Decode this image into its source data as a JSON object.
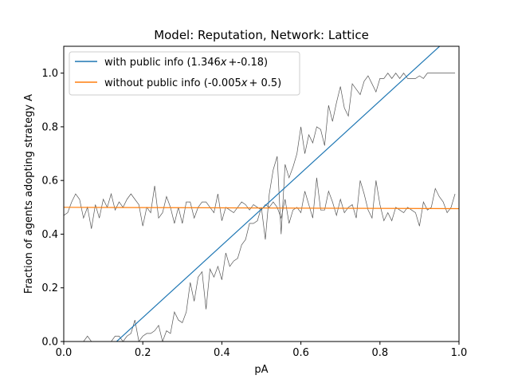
{
  "chart_data": {
    "type": "line",
    "title": "Model: Reputation, Network: Lattice",
    "xlabel": "pA",
    "ylabel": "Fraction of agents adopting strategy A",
    "xlim": [
      0.0,
      1.0
    ],
    "ylim": [
      0.0,
      1.1
    ],
    "xticks": [
      "0.0",
      "0.2",
      "0.4",
      "0.6",
      "0.8",
      "1.0"
    ],
    "yticks": [
      "0.0",
      "0.2",
      "0.4",
      "0.6",
      "0.8",
      "1.0"
    ],
    "grid": false,
    "legend_position": "top-left",
    "series": [
      {
        "name": "with public info (1.346$x+$-0.18)",
        "legend_prefix": "with public info (1.346",
        "legend_mid": "+",
        "legend_suffix": "-0.18)",
        "kind": "fit",
        "color": "#1f77b4",
        "slope": 1.346,
        "intercept": -0.18
      },
      {
        "name": "without public info (-0.005$x+0.5$)",
        "legend_prefix": "without public info (-0.005",
        "legend_mid": "+ 0.5",
        "legend_suffix": ")",
        "kind": "fit",
        "color": "#ff7f0e",
        "slope": -0.005,
        "intercept": 0.5
      },
      {
        "kind": "raw",
        "color": "#555555",
        "x": [
          0.0,
          0.01,
          0.02,
          0.03,
          0.04,
          0.05,
          0.06,
          0.07,
          0.08,
          0.09,
          0.1,
          0.11,
          0.12,
          0.13,
          0.14,
          0.15,
          0.16,
          0.17,
          0.18,
          0.19,
          0.2,
          0.21,
          0.22,
          0.23,
          0.24,
          0.25,
          0.26,
          0.27,
          0.28,
          0.29,
          0.3,
          0.31,
          0.32,
          0.33,
          0.34,
          0.35,
          0.36,
          0.37,
          0.38,
          0.39,
          0.4,
          0.41,
          0.42,
          0.43,
          0.44,
          0.45,
          0.46,
          0.47,
          0.48,
          0.49,
          0.5,
          0.51,
          0.52,
          0.53,
          0.54,
          0.55,
          0.56,
          0.57,
          0.58,
          0.59,
          0.6,
          0.61,
          0.62,
          0.63,
          0.64,
          0.65,
          0.66,
          0.67,
          0.68,
          0.69,
          0.7,
          0.71,
          0.72,
          0.73,
          0.74,
          0.75,
          0.76,
          0.77,
          0.78,
          0.79,
          0.8,
          0.81,
          0.82,
          0.83,
          0.84,
          0.85,
          0.86,
          0.87,
          0.88,
          0.89,
          0.9,
          0.91,
          0.92,
          0.93,
          0.94,
          0.95,
          0.96,
          0.97,
          0.98,
          0.99
        ],
        "y": [
          0.0,
          0.0,
          0.0,
          0.0,
          0.0,
          0.0,
          0.02,
          0.0,
          0.0,
          0.0,
          0.0,
          0.0,
          0.0,
          0.02,
          0.02,
          0.0,
          0.02,
          0.03,
          0.08,
          0.0,
          0.02,
          0.03,
          0.03,
          0.04,
          0.06,
          0.0,
          0.04,
          0.03,
          0.11,
          0.08,
          0.07,
          0.11,
          0.22,
          0.15,
          0.24,
          0.26,
          0.12,
          0.27,
          0.24,
          0.28,
          0.23,
          0.33,
          0.28,
          0.3,
          0.31,
          0.36,
          0.38,
          0.44,
          0.44,
          0.45,
          0.5,
          0.38,
          0.55,
          0.64,
          0.69,
          0.4,
          0.66,
          0.61,
          0.65,
          0.7,
          0.8,
          0.7,
          0.77,
          0.74,
          0.8,
          0.79,
          0.73,
          0.88,
          0.82,
          0.89,
          0.95,
          0.87,
          0.84,
          0.96,
          0.94,
          0.92,
          0.97,
          0.99,
          0.96,
          0.93,
          0.98,
          0.98,
          1.0,
          0.98,
          1.0,
          0.98,
          1.0,
          0.98,
          0.98,
          0.98,
          0.99,
          0.98,
          1.0,
          1.0,
          1.0,
          1.0,
          1.0,
          1.0,
          1.0,
          1.0
        ]
      },
      {
        "kind": "raw",
        "color": "#555555",
        "x": [
          0.0,
          0.01,
          0.02,
          0.03,
          0.04,
          0.05,
          0.06,
          0.07,
          0.08,
          0.09,
          0.1,
          0.11,
          0.12,
          0.13,
          0.14,
          0.15,
          0.16,
          0.17,
          0.18,
          0.19,
          0.2,
          0.21,
          0.22,
          0.23,
          0.24,
          0.25,
          0.26,
          0.27,
          0.28,
          0.29,
          0.3,
          0.31,
          0.32,
          0.33,
          0.34,
          0.35,
          0.36,
          0.37,
          0.38,
          0.39,
          0.4,
          0.41,
          0.42,
          0.43,
          0.44,
          0.45,
          0.46,
          0.47,
          0.48,
          0.49,
          0.5,
          0.51,
          0.52,
          0.53,
          0.54,
          0.55,
          0.56,
          0.57,
          0.58,
          0.59,
          0.6,
          0.61,
          0.62,
          0.63,
          0.64,
          0.65,
          0.66,
          0.67,
          0.68,
          0.69,
          0.7,
          0.71,
          0.72,
          0.73,
          0.74,
          0.75,
          0.76,
          0.77,
          0.78,
          0.79,
          0.8,
          0.81,
          0.82,
          0.83,
          0.84,
          0.85,
          0.86,
          0.87,
          0.88,
          0.89,
          0.9,
          0.91,
          0.92,
          0.93,
          0.94,
          0.95,
          0.96,
          0.97,
          0.98,
          0.99
        ],
        "y": [
          0.47,
          0.48,
          0.52,
          0.55,
          0.53,
          0.46,
          0.5,
          0.42,
          0.51,
          0.46,
          0.53,
          0.5,
          0.55,
          0.49,
          0.52,
          0.5,
          0.53,
          0.55,
          0.53,
          0.51,
          0.43,
          0.5,
          0.48,
          0.58,
          0.46,
          0.48,
          0.54,
          0.5,
          0.44,
          0.5,
          0.44,
          0.52,
          0.52,
          0.46,
          0.5,
          0.52,
          0.52,
          0.5,
          0.48,
          0.55,
          0.45,
          0.5,
          0.49,
          0.48,
          0.5,
          0.52,
          0.51,
          0.49,
          0.51,
          0.5,
          0.49,
          0.51,
          0.5,
          0.52,
          0.5,
          0.46,
          0.53,
          0.44,
          0.49,
          0.5,
          0.48,
          0.56,
          0.51,
          0.46,
          0.61,
          0.49,
          0.49,
          0.56,
          0.52,
          0.47,
          0.53,
          0.48,
          0.5,
          0.51,
          0.46,
          0.6,
          0.55,
          0.49,
          0.46,
          0.6,
          0.51,
          0.45,
          0.48,
          0.45,
          0.5,
          0.49,
          0.48,
          0.5,
          0.49,
          0.48,
          0.43,
          0.52,
          0.49,
          0.5,
          0.57,
          0.54,
          0.52,
          0.48,
          0.5,
          0.55
        ]
      }
    ]
  }
}
